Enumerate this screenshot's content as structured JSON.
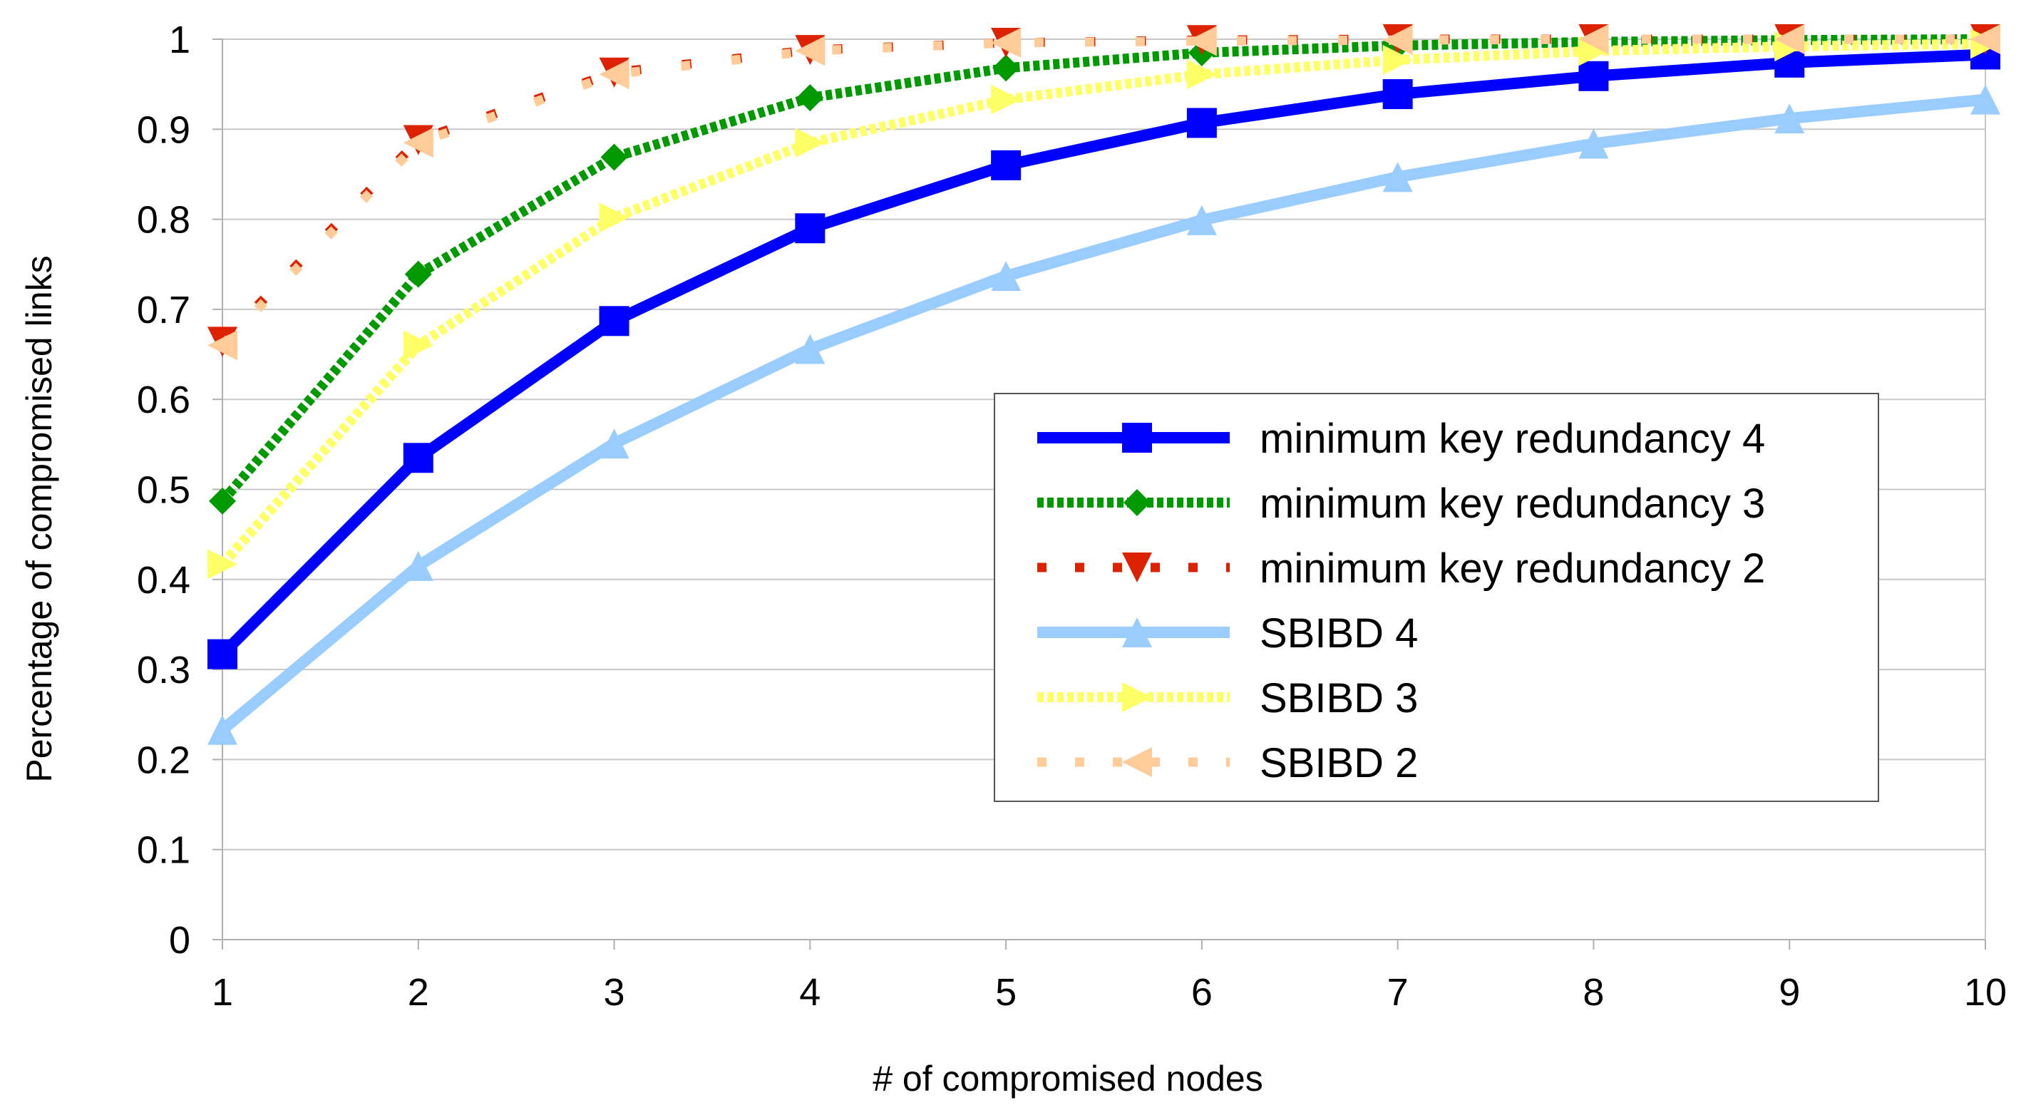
{
  "chart_data": {
    "type": "line",
    "title": "",
    "xlabel": "# of compromised nodes",
    "ylabel": "Percentage of compromised links",
    "x": [
      1,
      2,
      3,
      4,
      5,
      6,
      7,
      8,
      9,
      10
    ],
    "xlim": [
      1,
      10
    ],
    "ylim": [
      0,
      1
    ],
    "x_ticks": [
      "1",
      "2",
      "3",
      "4",
      "5",
      "6",
      "7",
      "8",
      "9",
      "10"
    ],
    "y_ticks": [
      "0",
      "0.1",
      "0.2",
      "0.3",
      "0.4",
      "0.5",
      "0.6",
      "0.7",
      "0.8",
      "0.9",
      "1"
    ],
    "grid": "horizontal",
    "legend_position": "center-right",
    "series": [
      {
        "name": "minimum key redundancy 4",
        "color": "#0000ff",
        "line": "solid",
        "marker": "square",
        "values": [
          0.317,
          0.535,
          0.687,
          0.79,
          0.86,
          0.907,
          0.939,
          0.959,
          0.974,
          0.983
        ]
      },
      {
        "name": "minimum key redundancy 3",
        "color": "#009900",
        "line": "dotted",
        "marker": "diamond",
        "values": [
          0.487,
          0.739,
          0.869,
          0.935,
          0.968,
          0.985,
          0.993,
          0.997,
          0.999,
          1.0
        ]
      },
      {
        "name": "minimum key redundancy 2",
        "color": "#dd2200",
        "line": "sparse-dot",
        "marker": "triangle-down",
        "values": [
          0.664,
          0.888,
          0.963,
          0.988,
          0.996,
          0.999,
          1.0,
          1.0,
          1.0,
          1.0
        ]
      },
      {
        "name": "SBIBD 4",
        "color": "#99ccff",
        "line": "solid",
        "marker": "triangle-up",
        "values": [
          0.233,
          0.415,
          0.551,
          0.656,
          0.737,
          0.799,
          0.847,
          0.884,
          0.912,
          0.933
        ]
      },
      {
        "name": "SBIBD 3",
        "color": "#ffff66",
        "line": "dotted",
        "marker": "triangle-right",
        "values": [
          0.417,
          0.66,
          0.802,
          0.885,
          0.933,
          0.961,
          0.977,
          0.987,
          0.992,
          0.995
        ]
      },
      {
        "name": "SBIBD 2",
        "color": "#ffcc99",
        "line": "sparse-dot",
        "marker": "triangle-left",
        "values": [
          0.66,
          0.885,
          0.961,
          0.987,
          0.996,
          0.998,
          0.999,
          1.0,
          1.0,
          1.0
        ]
      }
    ]
  }
}
